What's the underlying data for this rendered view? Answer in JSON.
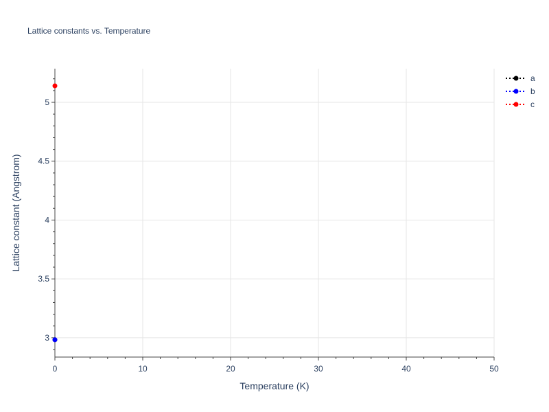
{
  "chart_data": {
    "type": "line",
    "title": "Lattice constants vs. Temperature",
    "xlabel": "Temperature (K)",
    "ylabel": "Lattice constant (Angstrom)",
    "xlim": [
      0,
      50
    ],
    "ylim": [
      2.836,
      5.286
    ],
    "xticks": [
      0,
      10,
      20,
      30,
      40,
      50
    ],
    "yticks": [
      3,
      3.5,
      4,
      4.5,
      5
    ],
    "grid": true,
    "legend_placement": "top-right",
    "series": [
      {
        "name": "a",
        "color": "#000000",
        "line": "dotted",
        "x": [
          0
        ],
        "y": [
          2.983
        ]
      },
      {
        "name": "b",
        "color": "#0000ff",
        "line": "dotted",
        "x": [
          0
        ],
        "y": [
          2.983
        ]
      },
      {
        "name": "c",
        "color": "#ff0000",
        "line": "dotted",
        "x": [
          0
        ],
        "y": [
          5.14
        ]
      }
    ]
  }
}
